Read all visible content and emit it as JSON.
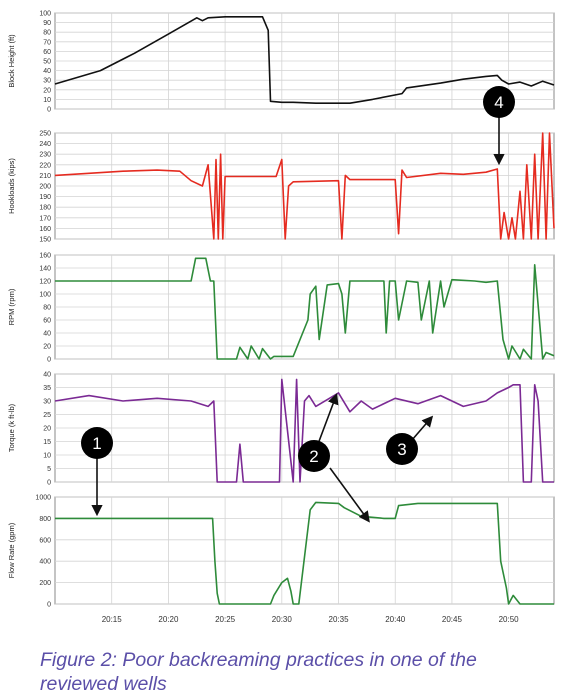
{
  "caption": "Figure 2: Poor backreaming practices in one of the reviewed wells",
  "chart_data": [
    {
      "type": "line",
      "ylabel": "Block Height (ft)",
      "ylim": [
        0,
        100
      ],
      "yticks": [
        0,
        10,
        20,
        30,
        40,
        50,
        60,
        70,
        80,
        90,
        100
      ],
      "color": "#111111",
      "series": [
        {
          "x": [
            "20:10",
            "20:14",
            "20:17",
            "20:20",
            "20:22.5",
            "20:23",
            "20:23.5",
            "20:25",
            "20:28.3",
            "20:28.8",
            "20:29",
            "20:30",
            "20:31",
            "20:33",
            "20:36",
            "20:38",
            "20:40.6",
            "20:41",
            "20:44",
            "20:46",
            "20:48",
            "20:49",
            "20:49.4",
            "20:50",
            "20:51",
            "20:52",
            "20:53",
            "20:54"
          ],
          "y": [
            26,
            40,
            58,
            78,
            95,
            92,
            95,
            96,
            96,
            82,
            8,
            7,
            7,
            6,
            6,
            10,
            16,
            22,
            27,
            31,
            34,
            35,
            30,
            26,
            28,
            24,
            29,
            25
          ]
        }
      ]
    },
    {
      "type": "line",
      "ylabel": "Hookloads (kips)",
      "ylim": [
        150,
        250
      ],
      "yticks": [
        150,
        160,
        170,
        180,
        190,
        200,
        210,
        220,
        230,
        240,
        250
      ],
      "color": "#e52b20",
      "series": [
        {
          "x": [
            "20:10",
            "20:13",
            "20:16",
            "20:19",
            "20:21",
            "20:22",
            "20:23",
            "20:23.5",
            "20:24",
            "20:24.2",
            "20:24.4",
            "20:24.6",
            "20:24.8",
            "20:25",
            "20:29.5",
            "20:30",
            "20:30.3",
            "20:30.6",
            "20:31",
            "20:35",
            "20:35.3",
            "20:35.6",
            "20:36",
            "20:40",
            "20:40.3",
            "20:40.6",
            "20:41",
            "20:44",
            "20:46",
            "20:48",
            "20:49",
            "20:49.3",
            "20:49.6",
            "20:50",
            "20:50.3",
            "20:50.6",
            "20:51",
            "20:51.3",
            "20:51.6",
            "20:52",
            "20:52.3",
            "20:52.6",
            "20:53",
            "20:53.3",
            "20:53.6",
            "20:54"
          ],
          "y": [
            210,
            212,
            214,
            215,
            214,
            205,
            200,
            220,
            150,
            225,
            150,
            230,
            150,
            209,
            209,
            225,
            150,
            200,
            204,
            205,
            150,
            210,
            206,
            206,
            155,
            215,
            208,
            212,
            211,
            213,
            216,
            150,
            175,
            150,
            170,
            150,
            195,
            150,
            220,
            150,
            230,
            150,
            250,
            150,
            250,
            160
          ]
        }
      ]
    },
    {
      "type": "line",
      "ylabel": "RPM (rpm)",
      "ylim": [
        0,
        160
      ],
      "yticks": [
        0,
        20,
        40,
        60,
        80,
        100,
        120,
        140,
        160
      ],
      "color": "#2e8b3a",
      "series": [
        {
          "x": [
            "20:10",
            "20:22",
            "20:22.4",
            "20:23.3",
            "20:23.7",
            "20:24",
            "20:24.3",
            "20:26",
            "20:26.3",
            "20:27",
            "20:27.3",
            "20:28",
            "20:28.3",
            "20:29",
            "20:29.3",
            "20:31",
            "20:32.3",
            "20:32.5",
            "20:33",
            "20:33.3",
            "20:34",
            "20:35",
            "20:35.3",
            "20:35.6",
            "20:36",
            "20:39",
            "20:39.2",
            "20:39.5",
            "20:40",
            "20:40.3",
            "20:41",
            "20:42",
            "20:42.3",
            "20:43",
            "20:43.3",
            "20:44",
            "20:44.3",
            "20:45",
            "20:47",
            "20:48",
            "20:49",
            "20:49.5",
            "20:50",
            "20:50.3",
            "20:51",
            "20:51.3",
            "20:52",
            "20:52.3",
            "20:53",
            "20:53.3",
            "20:54"
          ],
          "y": [
            120,
            120,
            155,
            155,
            120,
            120,
            0,
            0,
            18,
            0,
            20,
            0,
            16,
            0,
            4,
            4,
            60,
            100,
            112,
            30,
            114,
            116,
            100,
            40,
            120,
            120,
            40,
            120,
            120,
            60,
            120,
            118,
            60,
            120,
            40,
            120,
            80,
            122,
            120,
            118,
            120,
            30,
            0,
            20,
            0,
            15,
            0,
            145,
            0,
            10,
            5
          ]
        }
      ]
    },
    {
      "type": "line",
      "ylabel": "Torque (k ft-lb)",
      "ylim": [
        0,
        40
      ],
      "yticks": [
        0,
        5,
        10,
        15,
        20,
        25,
        30,
        35,
        40
      ],
      "color": "#7b2a94",
      "series": [
        {
          "x": [
            "20:10",
            "20:13",
            "20:16",
            "20:19",
            "20:22",
            "20:23.5",
            "20:24",
            "20:24.3",
            "20:26",
            "20:26.3",
            "20:26.6",
            "20:29",
            "20:29.8",
            "20:30",
            "20:31",
            "20:31.3",
            "20:31.6",
            "20:32",
            "20:32.4",
            "20:33",
            "20:35",
            "20:36",
            "20:37",
            "20:38",
            "20:40",
            "20:42",
            "20:44",
            "20:46",
            "20:48",
            "20:49",
            "20:50",
            "20:50.4",
            "20:51",
            "20:51.3",
            "20:52",
            "20:52.3",
            "20:52.6",
            "20:53",
            "20:53.3",
            "20:54"
          ],
          "y": [
            30,
            32,
            30,
            31,
            30,
            28,
            30,
            0,
            0,
            14,
            0,
            0,
            0,
            38,
            0,
            38,
            0,
            30,
            32,
            28,
            33,
            26,
            30,
            27,
            31,
            29,
            32,
            28,
            30,
            33,
            35,
            36,
            36,
            0,
            0,
            36,
            30,
            0,
            0,
            0
          ]
        }
      ]
    },
    {
      "type": "line",
      "ylabel": "Flow Rate (gpm)",
      "ylim": [
        0,
        1000
      ],
      "yticks": [
        0,
        200,
        400,
        600,
        800,
        1000
      ],
      "color": "#2e8b3a",
      "xticks": [
        "20:15",
        "20:20",
        "20:25",
        "20:30",
        "20:35",
        "20:40",
        "20:45",
        "20:50"
      ],
      "series": [
        {
          "x": [
            "20:10",
            "20:23.9",
            "20:24.1",
            "20:24.3",
            "20:24.5",
            "20:29",
            "20:29.3",
            "20:30",
            "20:30.5",
            "20:30.8",
            "20:31",
            "20:31.5",
            "20:32.5",
            "20:33",
            "20:35",
            "20:35.5",
            "20:37",
            "20:39",
            "20:40",
            "20:40.3",
            "20:42",
            "20:46",
            "20:49",
            "20:49.3",
            "20:49.8",
            "20:50",
            "20:50.4",
            "20:51",
            "20:54"
          ],
          "y": [
            800,
            800,
            400,
            100,
            0,
            0,
            80,
            200,
            240,
            120,
            0,
            0,
            880,
            950,
            940,
            900,
            820,
            800,
            800,
            920,
            940,
            940,
            940,
            400,
            150,
            0,
            80,
            0,
            0
          ]
        }
      ]
    }
  ],
  "annotations": [
    {
      "label": "1"
    },
    {
      "label": "2"
    },
    {
      "label": "3"
    },
    {
      "label": "4"
    }
  ]
}
